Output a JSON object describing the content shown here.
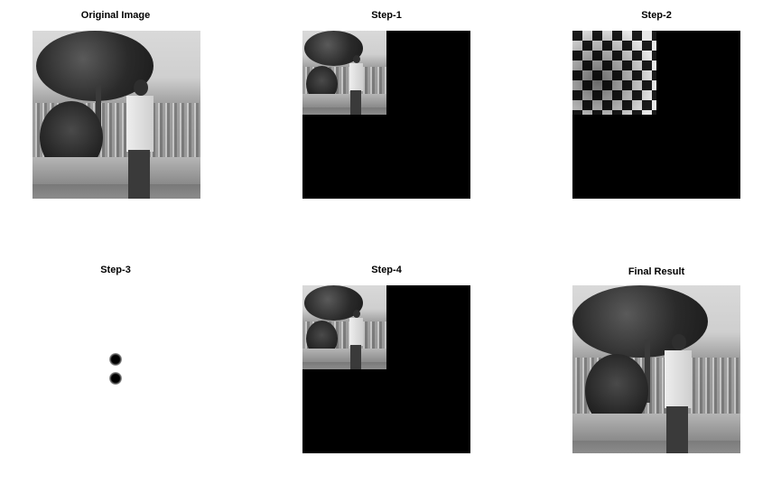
{
  "figure": {
    "panels": [
      {
        "title": "Original Image"
      },
      {
        "title": "Step-1"
      },
      {
        "title": "Step-2"
      },
      {
        "title": "Step-3"
      },
      {
        "title": "Step-4"
      },
      {
        "title": "Final Result"
      }
    ]
  },
  "colors": {
    "background": "#ffffff",
    "title_text": "#000000",
    "empty_region": "#000000"
  }
}
